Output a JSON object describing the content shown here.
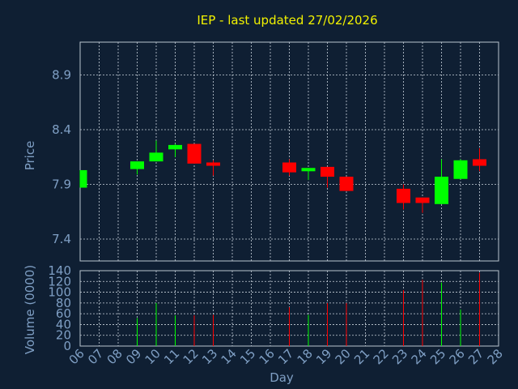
{
  "chart_data": [
    {
      "type": "candlestick",
      "title": "IEP - last updated 27/02/2026",
      "ylabel": "Price",
      "ylim": [
        7.2,
        9.2
      ],
      "yticks": [
        "7.4",
        "7.9",
        "8.4",
        "8.9"
      ],
      "grid": true,
      "up_color": "#00ff00",
      "down_color": "#ff0000",
      "candles": [
        {
          "day": "06",
          "open": 7.87,
          "close": 8.03,
          "high": 8.03,
          "low": 7.87
        },
        {
          "day": "09",
          "open": 8.04,
          "close": 8.11,
          "high": 8.11,
          "low": 7.99
        },
        {
          "day": "10",
          "open": 8.11,
          "close": 8.19,
          "high": 8.3,
          "low": 8.11
        },
        {
          "day": "11",
          "open": 8.22,
          "close": 8.26,
          "high": 8.27,
          "low": 8.15
        },
        {
          "day": "12",
          "open": 8.27,
          "close": 8.09,
          "high": 8.27,
          "low": 8.09
        },
        {
          "day": "13",
          "open": 8.1,
          "close": 8.07,
          "high": 8.12,
          "low": 7.98
        },
        {
          "day": "17",
          "open": 8.1,
          "close": 8.01,
          "high": 8.13,
          "low": 7.98
        },
        {
          "day": "18",
          "open": 8.02,
          "close": 8.05,
          "high": 8.05,
          "low": 7.94
        },
        {
          "day": "19",
          "open": 8.06,
          "close": 7.97,
          "high": 8.06,
          "low": 7.87
        },
        {
          "day": "20",
          "open": 7.97,
          "close": 7.84,
          "high": 7.97,
          "low": 7.84
        },
        {
          "day": "23",
          "open": 7.86,
          "close": 7.73,
          "high": 7.9,
          "low": 7.67
        },
        {
          "day": "24",
          "open": 7.78,
          "close": 7.73,
          "high": 7.78,
          "low": 7.64
        },
        {
          "day": "25",
          "open": 7.72,
          "close": 7.97,
          "high": 8.13,
          "low": 7.72
        },
        {
          "day": "26",
          "open": 7.95,
          "close": 8.12,
          "high": 8.13,
          "low": 7.95
        },
        {
          "day": "27",
          "open": 8.13,
          "close": 8.07,
          "high": 8.23,
          "low": 8.02
        }
      ]
    },
    {
      "type": "bar",
      "xlabel": "Day",
      "ylabel": "Volume (0000)",
      "ylim": [
        0,
        140
      ],
      "yticks": [
        "0",
        "20",
        "40",
        "60",
        "80",
        "100",
        "120",
        "140"
      ],
      "categories": [
        "06",
        "07",
        "08",
        "09",
        "10",
        "11",
        "12",
        "13",
        "14",
        "15",
        "16",
        "17",
        "18",
        "19",
        "20",
        "21",
        "22",
        "23",
        "24",
        "25",
        "26",
        "27",
        "28"
      ],
      "bars": [
        {
          "day": "09",
          "value": 52,
          "color": "#00ff00"
        },
        {
          "day": "10",
          "value": 80,
          "color": "#00ff00"
        },
        {
          "day": "11",
          "value": 57,
          "color": "#00ff00"
        },
        {
          "day": "12",
          "value": 57,
          "color": "#ff0000"
        },
        {
          "day": "13",
          "value": 58,
          "color": "#ff0000"
        },
        {
          "day": "17",
          "value": 72,
          "color": "#ff0000"
        },
        {
          "day": "18",
          "value": 58,
          "color": "#00ff00"
        },
        {
          "day": "19",
          "value": 80,
          "color": "#ff0000"
        },
        {
          "day": "20",
          "value": 80,
          "color": "#ff0000"
        },
        {
          "day": "23",
          "value": 104,
          "color": "#ff0000"
        },
        {
          "day": "24",
          "value": 123,
          "color": "#ff0000"
        },
        {
          "day": "25",
          "value": 118,
          "color": "#00ff00"
        },
        {
          "day": "26",
          "value": 68,
          "color": "#00ff00"
        },
        {
          "day": "27",
          "value": 136,
          "color": "#ff0000"
        }
      ]
    }
  ]
}
